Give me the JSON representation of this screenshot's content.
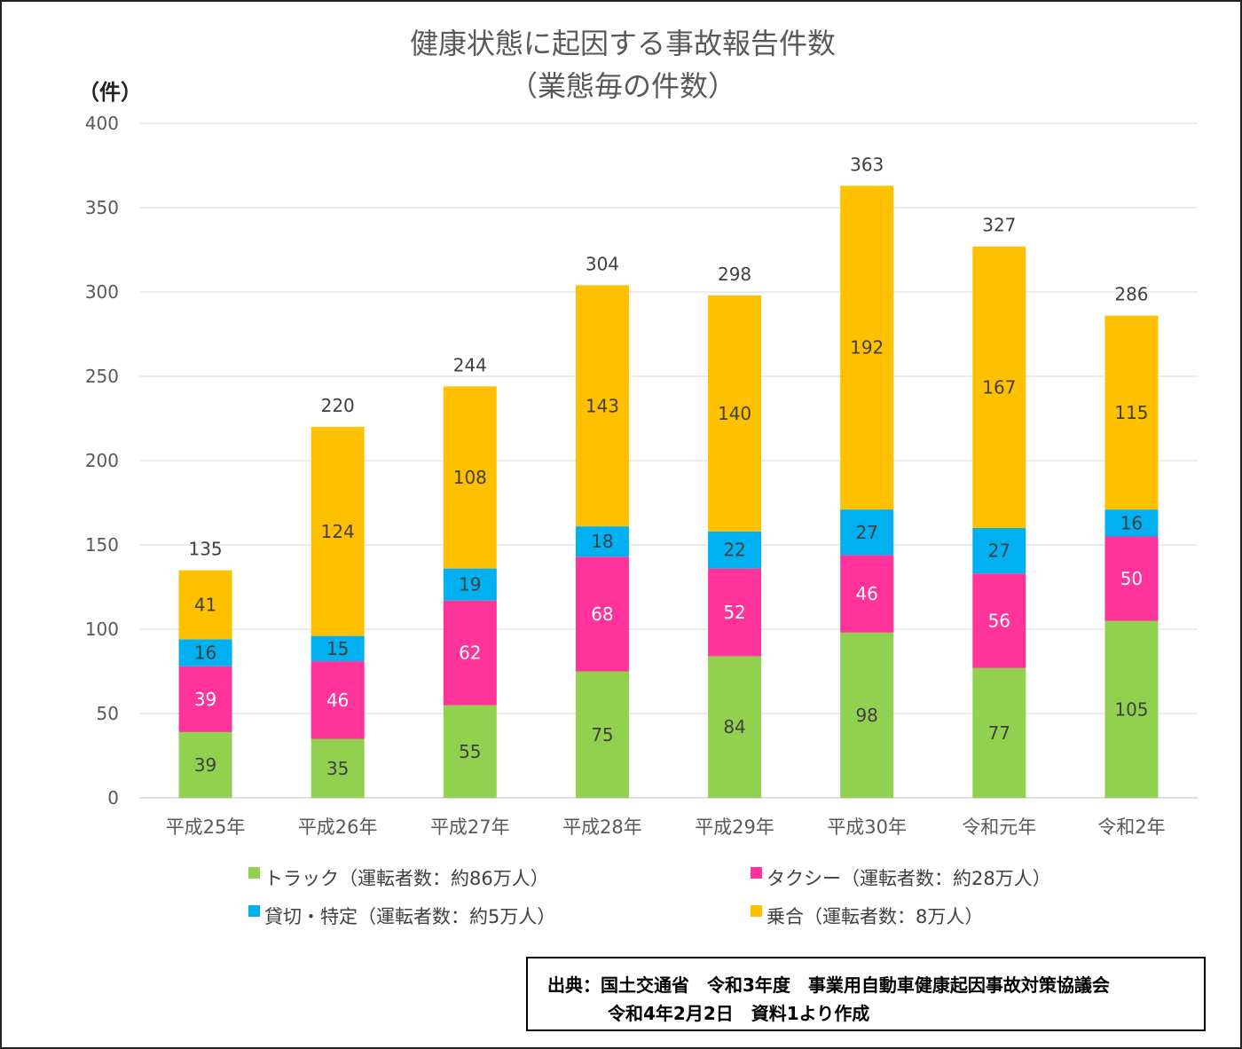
{
  "chart_data": {
    "type": "bar",
    "stacked": true,
    "title": "健康状態に起因する事故報告件数",
    "subtitle": "（業態毎の件数）",
    "ylabel": "（件）",
    "ylim": [
      0,
      400
    ],
    "yticks": [
      0,
      50,
      100,
      150,
      200,
      250,
      300,
      350,
      400
    ],
    "categories": [
      "平成25年",
      "平成26年",
      "平成27年",
      "平成28年",
      "平成29年",
      "平成30年",
      "令和元年",
      "令和2年"
    ],
    "series": [
      {
        "name": "トラック（運転者数：約86万人）",
        "color": "#92d050",
        "values": [
          39,
          35,
          55,
          75,
          84,
          98,
          77,
          105
        ]
      },
      {
        "name": "タクシー（運転者数：約28万人）",
        "color": "#ff3399",
        "values": [
          39,
          46,
          62,
          68,
          52,
          46,
          56,
          50
        ]
      },
      {
        "name": "貸切・特定（運転者数：約5万人）",
        "color": "#00b0f0",
        "values": [
          16,
          15,
          19,
          18,
          22,
          27,
          27,
          16
        ]
      },
      {
        "name": "乗合（運転者数：8万人）",
        "color": "#ffc000",
        "values": [
          41,
          124,
          108,
          143,
          140,
          192,
          167,
          115
        ]
      }
    ],
    "totals": [
      135,
      220,
      244,
      304,
      298,
      363,
      327,
      286
    ],
    "legend_position": "bottom"
  },
  "source": {
    "line1": "出典：国土交通省　令和3年度　事業用自動車健康起因事故対策協議会",
    "line2": "令和4年2月2日　資料1より作成"
  }
}
